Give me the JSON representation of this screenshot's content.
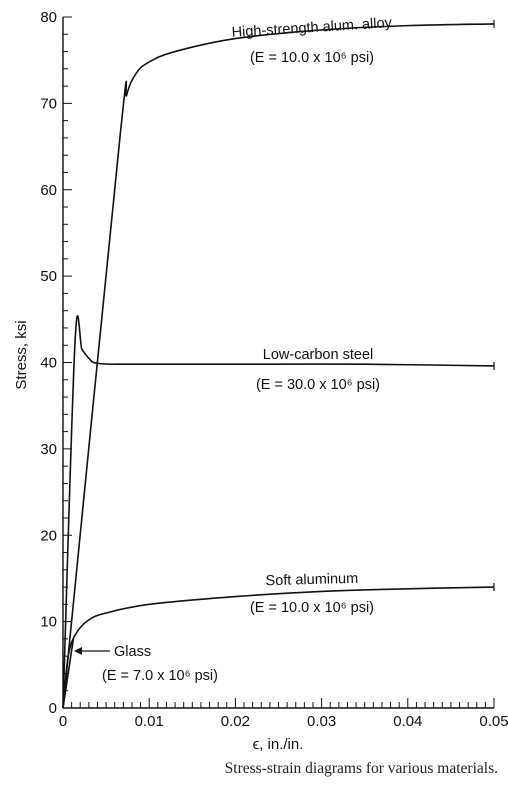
{
  "chart_data": {
    "type": "line",
    "caption": "Stress-strain diagrams for various materials.",
    "xlabel": "ϵ, in./in.",
    "ylabel": "Stress, ksi",
    "xlim": [
      0,
      0.05
    ],
    "ylim": [
      0,
      80
    ],
    "x_ticks": [
      "0",
      "0.01",
      "0.02",
      "0.03",
      "0.04",
      "0.05"
    ],
    "y_ticks": [
      "0",
      "10",
      "20",
      "30",
      "40",
      "50",
      "60",
      "70",
      "80"
    ],
    "grid": false,
    "series": [
      {
        "name": "High-strength alum. alloy",
        "annotation": [
          "High-strength alum. alloy",
          "(E = 10.0 x 10⁶ psi)"
        ],
        "points": [
          [
            0,
            0
          ],
          [
            0.0066,
            66
          ],
          [
            0.0074,
            71
          ],
          [
            0.0085,
            73.5
          ],
          [
            0.01,
            74.8
          ],
          [
            0.013,
            76
          ],
          [
            0.02,
            77.5
          ],
          [
            0.03,
            78.5
          ],
          [
            0.04,
            79
          ],
          [
            0.05,
            79.2
          ]
        ]
      },
      {
        "name": "Low-carbon steel",
        "annotation": [
          "Low-carbon steel",
          "(E = 30.0 x 10⁶ psi)"
        ],
        "points": [
          [
            0,
            0
          ],
          [
            0.0014,
            42.5
          ],
          [
            0.0022,
            41.5
          ],
          [
            0.003,
            40.5
          ],
          [
            0.004,
            39.9
          ],
          [
            0.008,
            39.8
          ],
          [
            0.02,
            39.8
          ],
          [
            0.035,
            39.8
          ],
          [
            0.05,
            39.6
          ]
        ]
      },
      {
        "name": "Soft aluminum",
        "annotation": [
          "Soft aluminum",
          "(E = 10.0 x 10⁶ psi)"
        ],
        "points": [
          [
            0,
            0
          ],
          [
            0.0006,
            6
          ],
          [
            0.0015,
            8.6
          ],
          [
            0.003,
            10.2
          ],
          [
            0.005,
            11
          ],
          [
            0.01,
            12
          ],
          [
            0.02,
            12.9
          ],
          [
            0.03,
            13.5
          ],
          [
            0.04,
            13.8
          ],
          [
            0.05,
            14
          ]
        ]
      },
      {
        "name": "Glass",
        "annotation": [
          "Glass",
          "(E = 7.0 x 10⁶ psi)"
        ],
        "points": [
          [
            0,
            0
          ],
          [
            0.0012,
            8
          ]
        ]
      }
    ]
  }
}
